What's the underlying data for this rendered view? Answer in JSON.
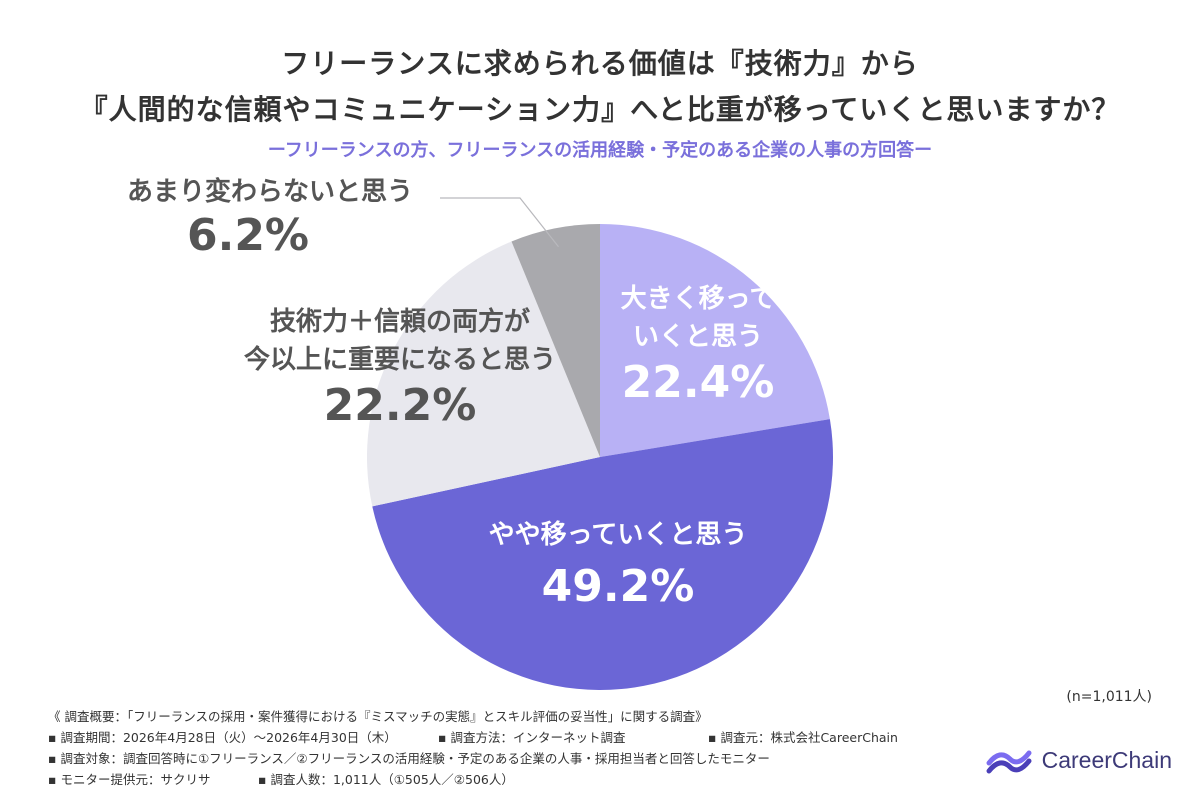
{
  "title_line1": "フリーランスに求められる価値は『技術力』から",
  "title_line2": "『人間的な信頼やコミュニケーション力』へと比重が移っていくと思いますか？",
  "subtitle": "ーフリーランスの方、フリーランスの活用経験・予定のある企業の人事の方回答ー",
  "n_label": "(n=1,011人)",
  "chart_data": {
    "type": "pie",
    "title": "フリーランスに求められる価値は『技術力』から『人間的な信頼やコミュニケーション力』へと比重が移っていくと思いますか？",
    "start": "12 o'clock, clockwise",
    "slices": [
      {
        "label_lines": [
          "大きく移って",
          "いくと思う"
        ],
        "value": 22.4,
        "value_text": "22.4%",
        "color": "#b8b1f5",
        "label_color": "#ffffff"
      },
      {
        "label_lines": [
          "やや移っていくと思う"
        ],
        "value": 49.2,
        "value_text": "49.2%",
        "color": "#6b66d6",
        "label_color": "#ffffff"
      },
      {
        "label_lines": [
          "技術力＋信頼の両方が",
          "今以上に重要になると思う"
        ],
        "value": 22.2,
        "value_text": "22.2%",
        "color": "#e8e8ee",
        "label_color": "#555555"
      },
      {
        "label_lines": [
          "あまり変わらないと思う"
        ],
        "value": 6.2,
        "value_text": "6.2%",
        "color": "#a9a9ad",
        "label_color": "#555555"
      }
    ]
  },
  "notes": {
    "line1": "《 調査概要：「フリーランスの採用・案件獲得における『ミスマッチの実態』とスキル評価の妥当性」に関する調査》",
    "period": "▪ 調査期間：2026年4月28日（火）〜2026年4月30日（木）",
    "method": "▪ 調査方法：インターネット調査",
    "source": "▪ 調査元：株式会社CareerChain",
    "target": "▪ 調査対象：調査回答時に①フリーランス／②フリーランスの活用経験・予定のある企業の人事・採用担当者と回答したモニター",
    "provider": "▪ モニター提供元：サクリサ",
    "count": "▪ 調査人数：1,011人（①505人／②506人）"
  },
  "brand": {
    "name": "CareerChain",
    "color": "#3d3a78",
    "icon": "careerchain-logo-icon"
  }
}
